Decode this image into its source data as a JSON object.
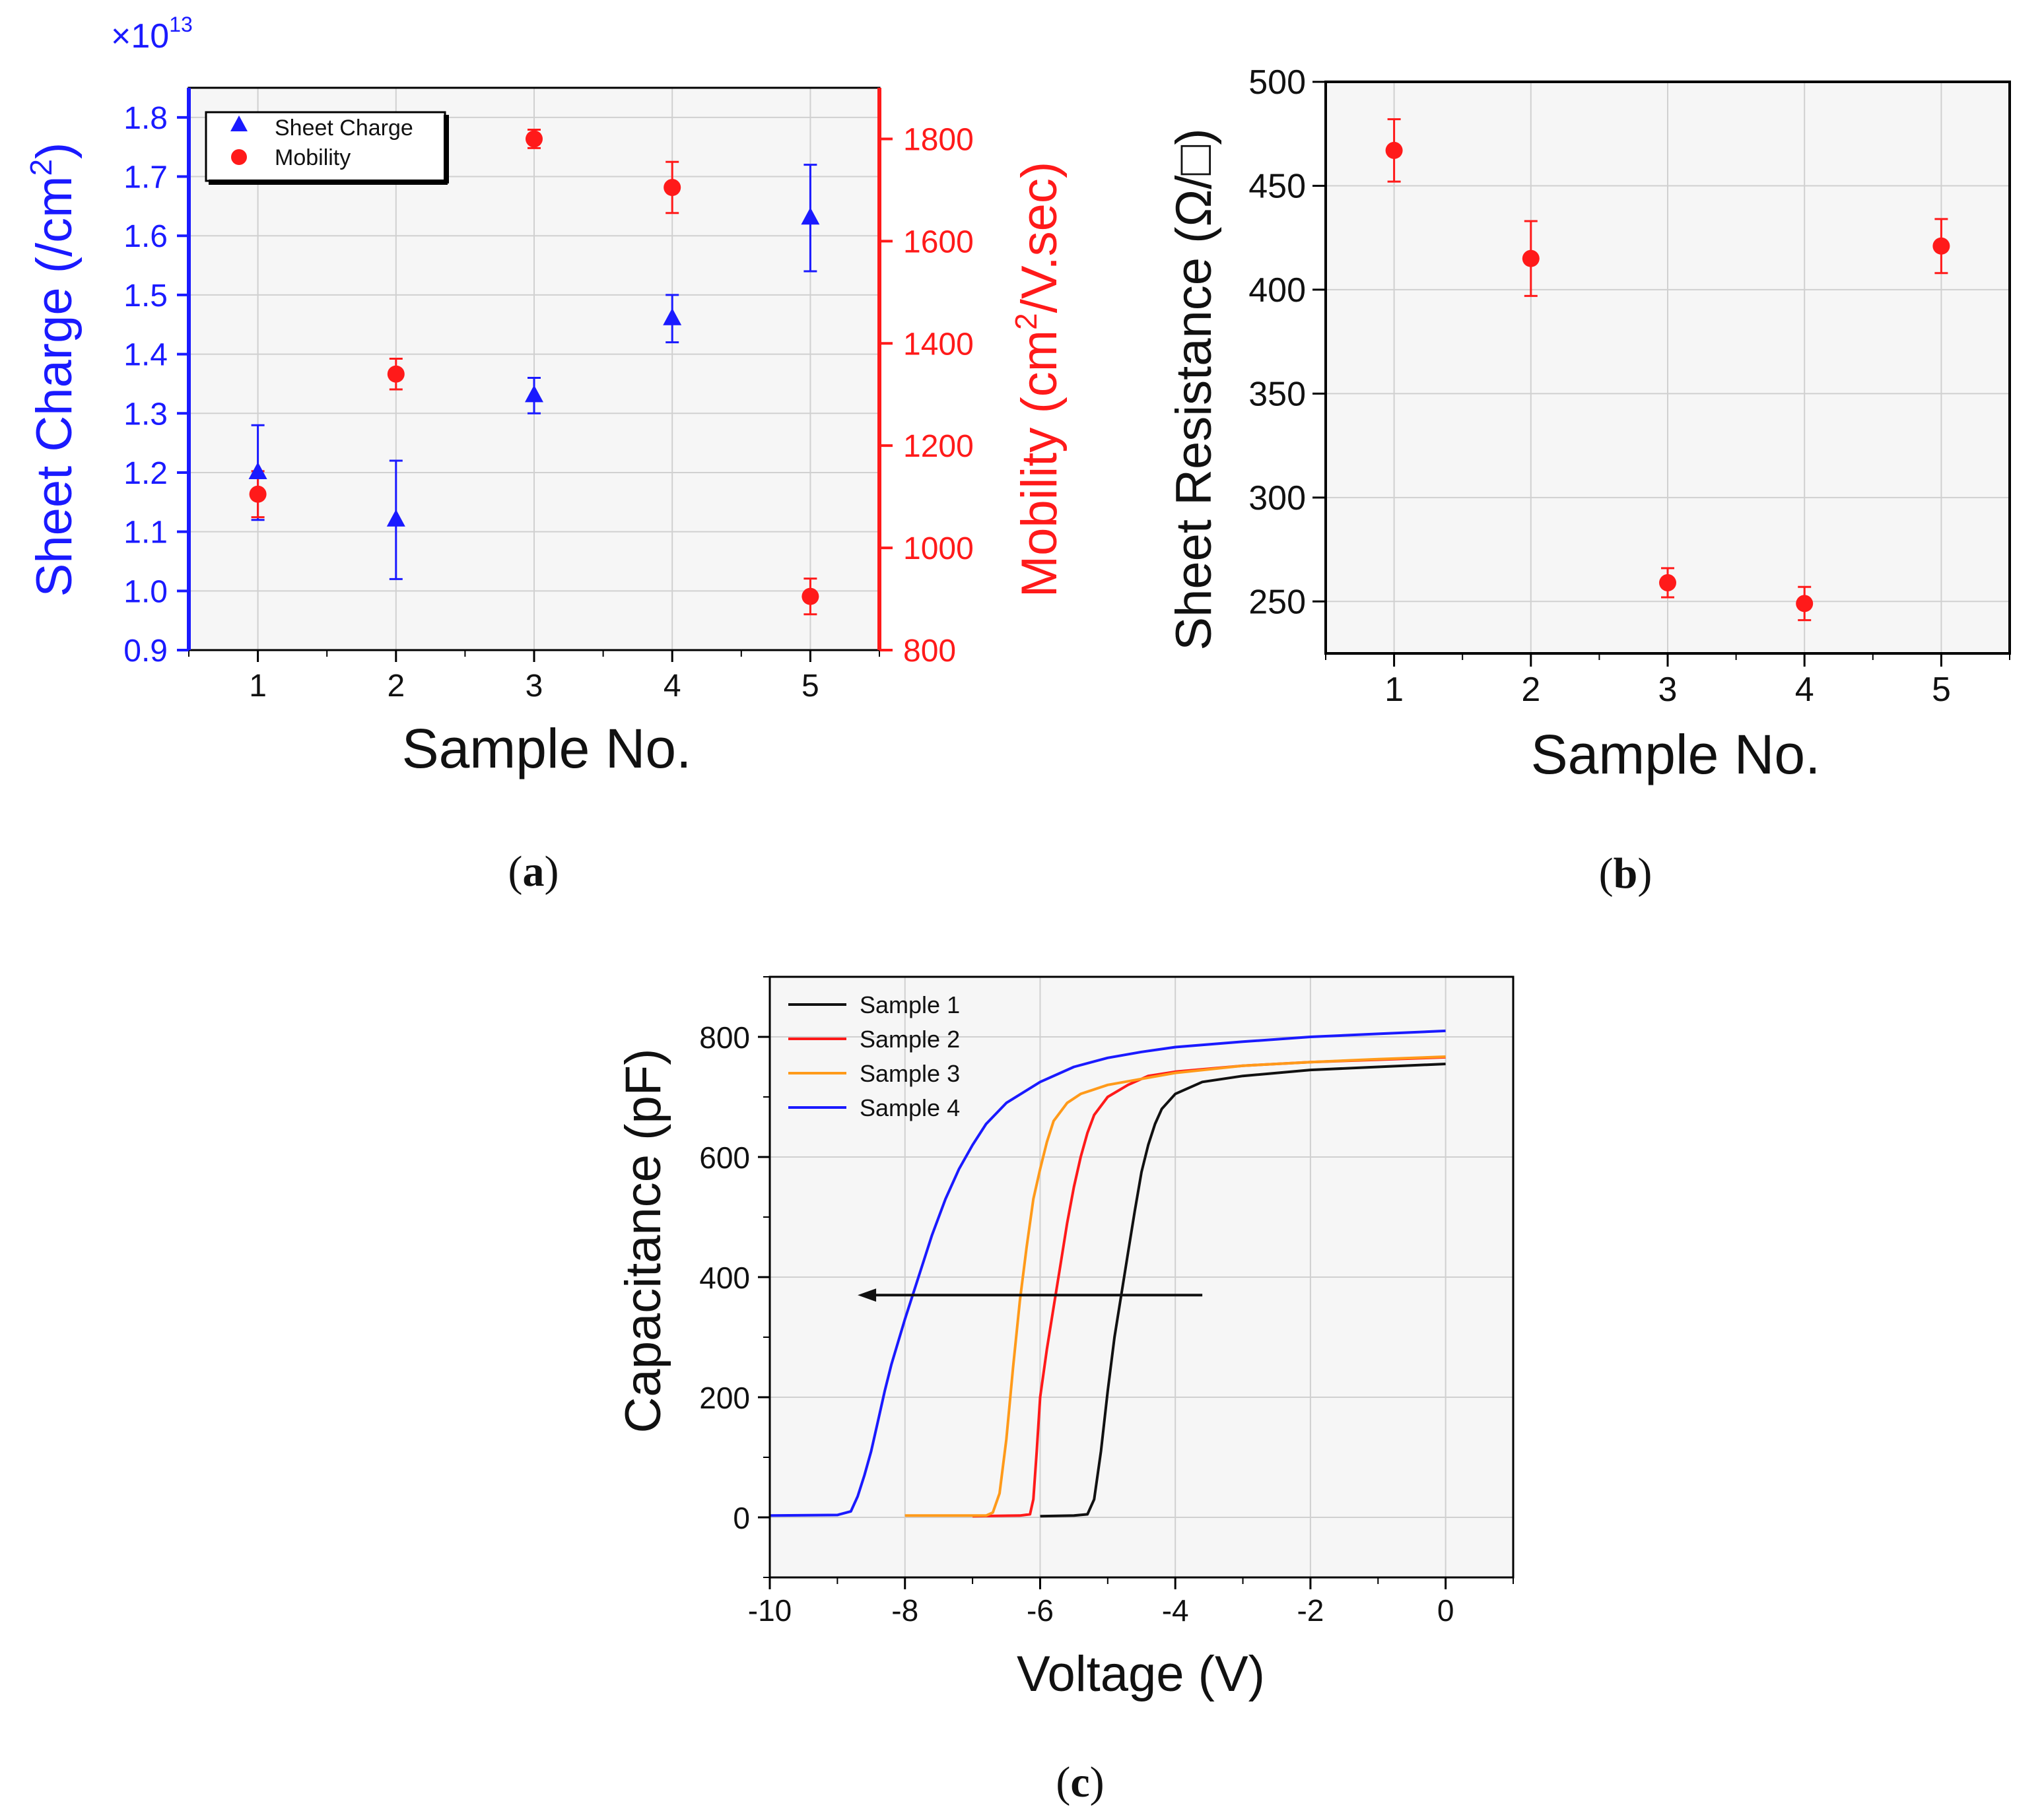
{
  "chart_data": [
    {
      "id": "a",
      "type": "scatter",
      "caption_label": "a",
      "xlabel": "Sample No.",
      "x_ticks": [
        "1",
        "2",
        "3",
        "4",
        "5"
      ],
      "xlim": [
        0.5,
        5.5
      ],
      "y_left": {
        "label": "Sheet Charge (/cm",
        "label_sup": "2",
        "label_end": ")",
        "multiplier": "×10",
        "multiplier_exp": "13",
        "ylim": [
          0.9,
          1.85
        ],
        "ticks": [
          "0.9",
          "1.0",
          "1.1",
          "1.2",
          "1.3",
          "1.4",
          "1.5",
          "1.6",
          "1.7",
          "1.8"
        ],
        "color": "#1a1aff"
      },
      "y_right": {
        "label": "Mobility (cm",
        "label_sup": "2",
        "label_end": "/V.sec)",
        "ylim": [
          800,
          1900
        ],
        "ticks": [
          "800",
          "1000",
          "1200",
          "1400",
          "1600",
          "1800"
        ],
        "color": "#ff1a1a"
      },
      "series": [
        {
          "name": "Sheet Charge",
          "marker": "triangle",
          "axis": "left",
          "color": "#1a1aff",
          "x": [
            1,
            2,
            3,
            4,
            5
          ],
          "y": [
            1.2,
            1.12,
            1.33,
            1.46,
            1.63
          ],
          "err": [
            0.08,
            0.1,
            0.03,
            0.04,
            0.09
          ]
        },
        {
          "name": "Mobility",
          "marker": "circle",
          "axis": "right",
          "color": "#ff1a1a",
          "x": [
            1,
            2,
            3,
            4,
            5
          ],
          "y": [
            1105,
            1340,
            1800,
            1705,
            905
          ],
          "err": [
            45,
            30,
            18,
            50,
            35
          ]
        }
      ],
      "legend": [
        "Sheet Charge",
        "Mobility"
      ],
      "legend_position": "top-left"
    },
    {
      "id": "b",
      "type": "scatter",
      "caption_label": "b",
      "xlabel": "Sample No.",
      "ylabel": "Sheet Resistance (Ω/□)",
      "x_ticks": [
        "1",
        "2",
        "3",
        "4",
        "5"
      ],
      "xlim": [
        0.5,
        5.5
      ],
      "ylim": [
        225,
        500
      ],
      "y_ticks": [
        "250",
        "300",
        "350",
        "400",
        "450",
        "500"
      ],
      "series": [
        {
          "name": "Sheet Resistance",
          "marker": "circle",
          "color": "#ff1a1a",
          "x": [
            1,
            2,
            3,
            4,
            5
          ],
          "y": [
            467,
            415,
            259,
            249,
            421
          ],
          "err": [
            15,
            18,
            7,
            8,
            13
          ]
        }
      ]
    },
    {
      "id": "c",
      "type": "line",
      "caption_label": "c",
      "xlabel": "Voltage (V)",
      "ylabel": "Capacitance (pF)",
      "xlim": [
        -10,
        1
      ],
      "ylim": [
        -100,
        900
      ],
      "x_ticks": [
        "-10",
        "-8",
        "-6",
        "-4",
        "-2",
        "0"
      ],
      "y_ticks": [
        "0",
        "200",
        "400",
        "600",
        "800"
      ],
      "series": [
        {
          "name": "Sample 1",
          "color": "#111111",
          "x": [
            -6,
            -5.5,
            -5.3,
            -5.2,
            -5.1,
            -5.0,
            -4.9,
            -4.8,
            -4.7,
            -4.6,
            -4.5,
            -4.4,
            -4.3,
            -4.2,
            -4.0,
            -3.6,
            -3.0,
            -2.0,
            -1.0,
            0
          ],
          "y": [
            2,
            3,
            5,
            30,
            110,
            210,
            300,
            370,
            440,
            510,
            575,
            620,
            655,
            680,
            705,
            725,
            735,
            745,
            750,
            755
          ]
        },
        {
          "name": "Sample 2",
          "color": "#ff1a1a",
          "x": [
            -7,
            -6.3,
            -6.15,
            -6.1,
            -6.05,
            -6.0,
            -5.9,
            -5.8,
            -5.7,
            -5.6,
            -5.5,
            -5.4,
            -5.3,
            -5.2,
            -5.0,
            -4.7,
            -4.4,
            -4.0,
            -3.0,
            -2.0,
            -1.0,
            0
          ],
          "y": [
            2,
            3,
            5,
            30,
            110,
            200,
            280,
            350,
            420,
            490,
            550,
            600,
            640,
            670,
            700,
            720,
            735,
            742,
            752,
            758,
            762,
            766
          ]
        },
        {
          "name": "Sample 3",
          "color": "#ff9a1a",
          "x": [
            -8,
            -6.8,
            -6.7,
            -6.6,
            -6.5,
            -6.4,
            -6.3,
            -6.2,
            -6.1,
            -6.0,
            -5.9,
            -5.8,
            -5.6,
            -5.4,
            -5.0,
            -4.5,
            -4.0,
            -3.0,
            -2.0,
            -1.0,
            0
          ],
          "y": [
            3,
            3,
            8,
            40,
            130,
            250,
            360,
            450,
            530,
            580,
            625,
            660,
            690,
            705,
            720,
            730,
            740,
            752,
            758,
            763,
            767
          ]
        },
        {
          "name": "Sample 4",
          "color": "#1a1aff",
          "x": [
            -10,
            -9,
            -8.8,
            -8.7,
            -8.6,
            -8.5,
            -8.4,
            -8.3,
            -8.2,
            -8.0,
            -7.8,
            -7.6,
            -7.4,
            -7.2,
            -7.0,
            -6.8,
            -6.5,
            -6.0,
            -5.5,
            -5.0,
            -4.5,
            -4.0,
            -3.0,
            -2.0,
            -1.0,
            0
          ],
          "y": [
            3,
            4,
            10,
            35,
            70,
            110,
            160,
            210,
            255,
            330,
            400,
            470,
            530,
            580,
            620,
            655,
            690,
            725,
            750,
            765,
            775,
            783,
            792,
            800,
            805,
            810
          ]
        }
      ],
      "annotations": [
        {
          "type": "arrow",
          "from": [
            -3.6,
            370
          ],
          "to": [
            -8.7,
            370
          ],
          "color": "#111111"
        }
      ],
      "legend": [
        "Sample 1",
        "Sample 2",
        "Sample 3",
        "Sample 4"
      ],
      "legend_position": "top-left"
    }
  ]
}
